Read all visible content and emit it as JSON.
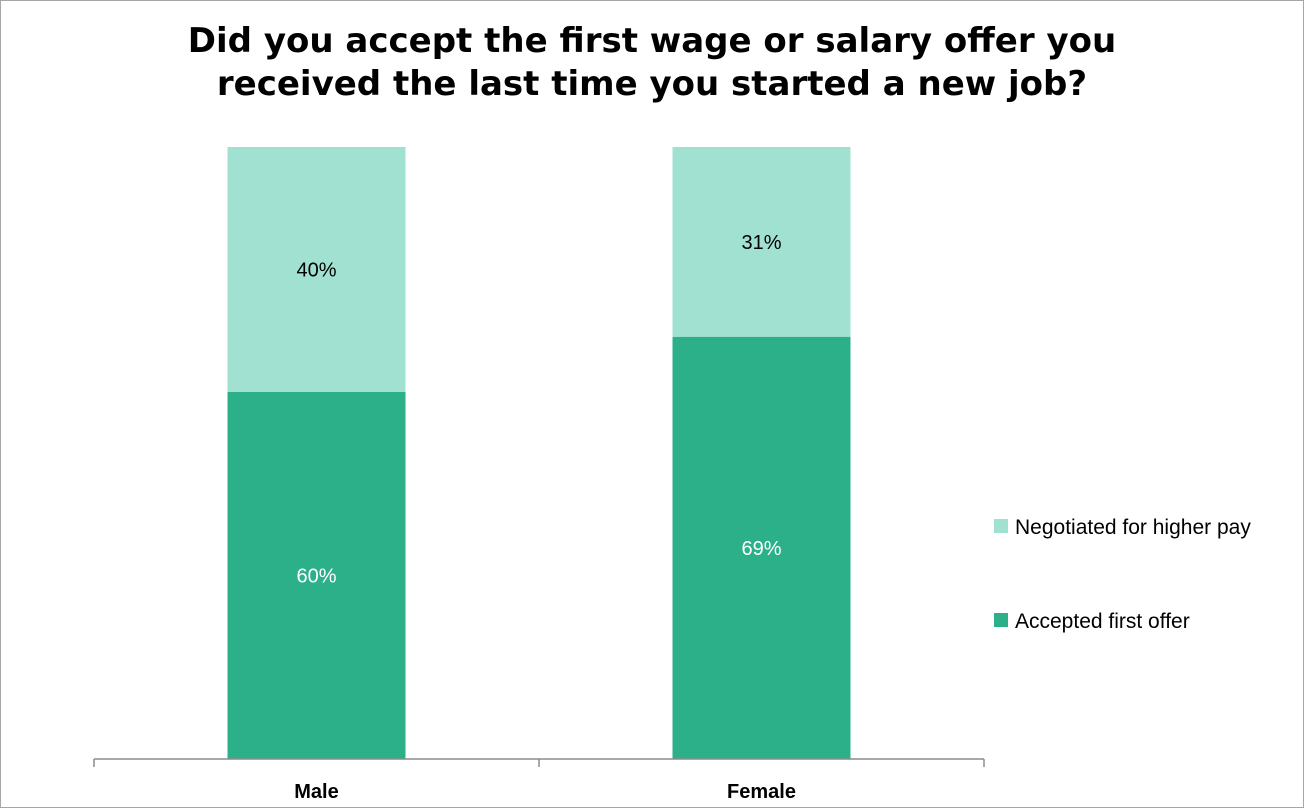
{
  "chart_data": {
    "type": "bar",
    "stacked": true,
    "title_lines": [
      "Did you accept the first wage or salary offer you",
      "received the last time you started a new job?"
    ],
    "categories": [
      "Male",
      "Female"
    ],
    "series": [
      {
        "name": "Accepted first offer",
        "values": [
          60,
          69
        ],
        "labels": [
          "60%",
          "69%"
        ],
        "color": "#2bb08a",
        "label_color": "#ffffff"
      },
      {
        "name": "Negotiated for higher pay",
        "values": [
          40,
          31
        ],
        "labels": [
          "40%",
          "31%"
        ],
        "color": "#a1e1d1",
        "label_color": "#000000"
      }
    ],
    "legend_order": [
      "Negotiated for higher pay",
      "Accepted first offer"
    ],
    "legend_position": "right",
    "ylim": [
      0,
      100
    ],
    "grid": false
  }
}
